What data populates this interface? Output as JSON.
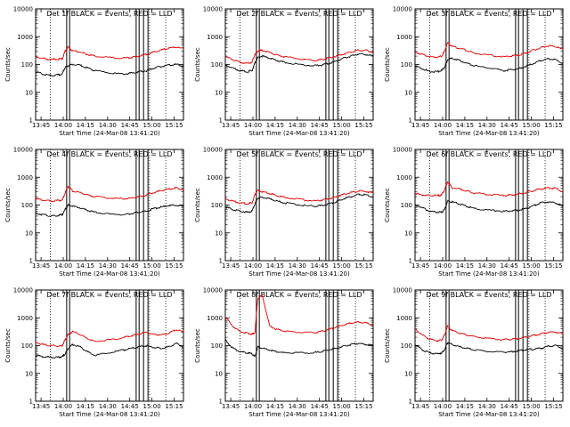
{
  "figure": {
    "colors": {
      "events": "#000000",
      "lld": "#e00000",
      "background": "#ffffff"
    }
  },
  "panels": [
    {
      "title": "Det 1f BLACK = Events, RED = LLD",
      "xlabel": "Start Time (24-Mar-08 13:41:20)",
      "ylabel": "Counts/sec"
    },
    {
      "title": "Det 2f BLACK = Events, RED = LLD",
      "xlabel": "Start Time (24-Mar-08 13:41:20)",
      "ylabel": "Counts/sec"
    },
    {
      "title": "Det 3f BLACK = Events, RED = LLD",
      "xlabel": "Start Time (24-Mar-08 13:41:20)",
      "ylabel": "Counts/sec"
    },
    {
      "title": "Det 4f BLACK = Events, RED = LLD",
      "xlabel": "Start Time (24-Mar-08 13:41:20)",
      "ylabel": "Counts/sec"
    },
    {
      "title": "Det 5f BLACK = Events, RED = LLD",
      "xlabel": "Start Time (24-Mar-08 13:41:20)",
      "ylabel": "Counts/sec"
    },
    {
      "title": "Det 6f BLACK = Events, RED = LLD",
      "xlabel": "Start Time (24-Mar-08 13:41:20)",
      "ylabel": "Counts/sec"
    },
    {
      "title": "Det 7f BLACK = Events, RED = LLD",
      "xlabel": "Start Time (24-Mar-08 13:41:20)",
      "ylabel": "Counts/sec"
    },
    {
      "title": "Det 8f BLACK = Events, RED = LLD",
      "xlabel": "Start Time (24-Mar-08 13:41:20)",
      "ylabel": "Counts/sec"
    },
    {
      "title": "Det 9f BLACK = Events, RED = LLD",
      "xlabel": "Start Time (24-Mar-08 13:41:20)",
      "ylabel": "Counts/sec"
    }
  ],
  "chart_data": {
    "type": "line",
    "layout": "3x3 grid",
    "x_unit": "minutes since 13:41:20",
    "xlim": [
      0,
      100
    ],
    "x_ticks": [
      {
        "label": "13:45",
        "value": 3.67
      },
      {
        "label": "14:00",
        "value": 18.67
      },
      {
        "label": "14:15",
        "value": 33.67
      },
      {
        "label": "14:30",
        "value": 48.67
      },
      {
        "label": "14:45",
        "value": 63.67
      },
      {
        "label": "15:00",
        "value": 78.67
      },
      {
        "label": "15:15",
        "value": 93.67
      }
    ],
    "y_scale": "log",
    "ylim": [
      1,
      10000
    ],
    "y_ticks": [
      {
        "label": "1",
        "value": 1
      },
      {
        "label": "10",
        "value": 10
      },
      {
        "label": "100",
        "value": 100
      },
      {
        "label": "1000",
        "value": 1000
      },
      {
        "label": "10000",
        "value": 10000
      }
    ],
    "dotted_verticals": [
      10,
      77,
      88
    ],
    "solid_verticals": [
      21,
      23,
      68,
      70,
      73,
      76
    ],
    "series_x": [
      0,
      5,
      10,
      15,
      18,
      20,
      22,
      25,
      30,
      35,
      40,
      50,
      60,
      65,
      70,
      75,
      80,
      85,
      90,
      95,
      100
    ],
    "panels_series": [
      {
        "events": [
          55,
          45,
          40,
          42,
          45,
          80,
          90,
          100,
          95,
          75,
          60,
          50,
          45,
          50,
          55,
          60,
          75,
          85,
          95,
          100,
          90
        ],
        "lld": [
          190,
          165,
          150,
          155,
          160,
          300,
          420,
          310,
          280,
          230,
          200,
          180,
          170,
          180,
          200,
          230,
          280,
          330,
          390,
          420,
          370
        ]
      },
      {
        "events": [
          95,
          75,
          60,
          55,
          60,
          110,
          180,
          200,
          170,
          140,
          120,
          100,
          90,
          95,
          110,
          130,
          170,
          200,
          240,
          230,
          200
        ],
        "lld": [
          190,
          150,
          120,
          110,
          120,
          230,
          310,
          320,
          270,
          220,
          190,
          160,
          140,
          150,
          170,
          200,
          240,
          280,
          330,
          320,
          280
        ]
      },
      {
        "events": [
          90,
          70,
          55,
          55,
          60,
          80,
          150,
          170,
          140,
          110,
          90,
          75,
          60,
          65,
          70,
          85,
          110,
          140,
          160,
          150,
          110
        ],
        "lld": [
          280,
          230,
          190,
          180,
          200,
          300,
          600,
          450,
          380,
          320,
          260,
          220,
          190,
          200,
          220,
          260,
          330,
          400,
          470,
          450,
          340
        ]
      },
      {
        "events": [
          50,
          45,
          40,
          42,
          45,
          70,
          100,
          90,
          80,
          65,
          55,
          48,
          45,
          50,
          55,
          60,
          75,
          85,
          95,
          100,
          90
        ],
        "lld": [
          170,
          150,
          140,
          145,
          150,
          280,
          480,
          320,
          280,
          230,
          200,
          180,
          170,
          180,
          200,
          230,
          280,
          330,
          380,
          410,
          360
        ]
      },
      {
        "events": [
          85,
          70,
          60,
          55,
          60,
          110,
          180,
          190,
          170,
          140,
          120,
          100,
          90,
          95,
          110,
          130,
          170,
          200,
          240,
          230,
          200
        ],
        "lld": [
          170,
          140,
          120,
          110,
          120,
          230,
          340,
          300,
          260,
          220,
          190,
          160,
          140,
          150,
          170,
          200,
          240,
          280,
          320,
          310,
          270
        ]
      },
      {
        "events": [
          100,
          80,
          60,
          55,
          55,
          70,
          140,
          130,
          110,
          90,
          75,
          65,
          60,
          62,
          65,
          75,
          95,
          120,
          130,
          120,
          90
        ],
        "lld": [
          260,
          230,
          220,
          220,
          230,
          350,
          700,
          420,
          380,
          320,
          270,
          240,
          220,
          230,
          250,
          280,
          330,
          380,
          410,
          400,
          300
        ]
      },
      {
        "events": [
          45,
          40,
          38,
          38,
          40,
          50,
          80,
          110,
          90,
          60,
          45,
          55,
          70,
          80,
          90,
          100,
          85,
          80,
          90,
          120,
          90
        ],
        "lld": [
          130,
          110,
          100,
          95,
          100,
          160,
          250,
          320,
          250,
          180,
          140,
          160,
          200,
          230,
          260,
          300,
          250,
          240,
          280,
          380,
          300
        ]
      },
      {
        "events": [
          160,
          80,
          60,
          55,
          50,
          40,
          90,
          80,
          70,
          60,
          55,
          55,
          55,
          60,
          70,
          80,
          95,
          110,
          120,
          110,
          100
        ],
        "lld": [
          1100,
          500,
          320,
          280,
          250,
          300,
          5000,
          6500,
          500,
          380,
          330,
          300,
          290,
          320,
          380,
          460,
          560,
          650,
          700,
          650,
          560
        ]
      },
      {
        "events": [
          110,
          70,
          55,
          50,
          55,
          70,
          130,
          110,
          90,
          80,
          70,
          62,
          58,
          60,
          65,
          70,
          75,
          80,
          95,
          100,
          80
        ],
        "lld": [
          400,
          240,
          170,
          150,
          160,
          240,
          500,
          350,
          280,
          240,
          210,
          180,
          165,
          170,
          180,
          200,
          230,
          260,
          300,
          310,
          260
        ]
      }
    ]
  }
}
